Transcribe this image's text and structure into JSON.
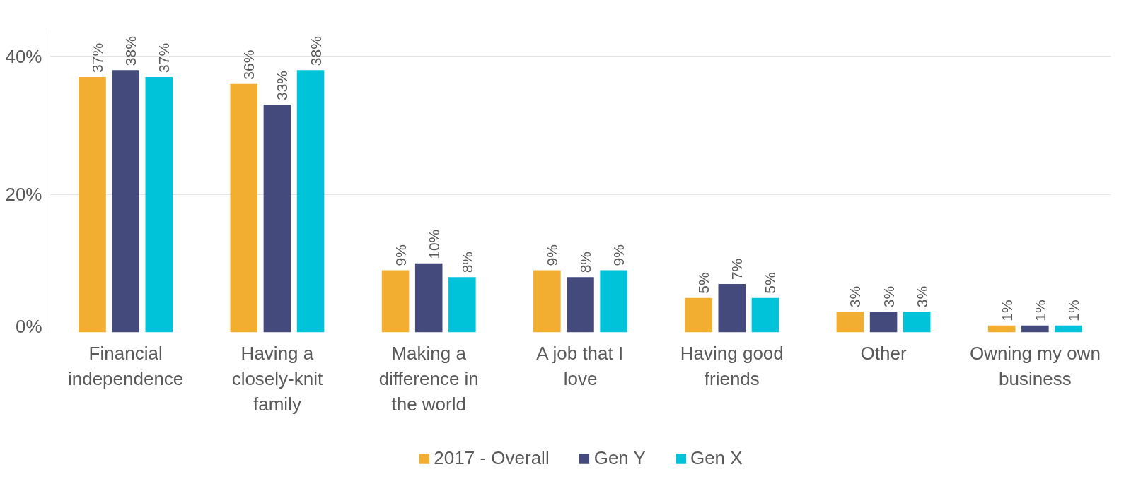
{
  "chart_data": {
    "type": "bar",
    "categories": [
      "Financial independence",
      "Having a closely-knit family",
      "Making a difference in the world",
      "A job that I love",
      "Having good friends",
      "Other",
      "Owning my own business"
    ],
    "series": [
      {
        "name": "2017 - Overall",
        "color": "#f2ae30",
        "values": [
          37,
          36,
          9,
          9,
          5,
          3,
          1
        ],
        "value_labels": [
          "37%",
          "36%",
          "9%",
          "9%",
          "5%",
          "3%",
          "1%"
        ]
      },
      {
        "name": "Gen Y",
        "color": "#444b7c",
        "values": [
          38,
          33,
          10,
          8,
          7,
          3,
          1
        ],
        "value_labels": [
          "38%",
          "33%",
          "10%",
          "8%",
          "7%",
          "3%",
          "1%"
        ]
      },
      {
        "name": "Gen X",
        "color": "#00c2d9",
        "values": [
          37,
          38,
          8,
          9,
          5,
          3,
          1
        ],
        "value_labels": [
          "37%",
          "38%",
          "8%",
          "9%",
          "5%",
          "3%",
          "1%"
        ]
      }
    ],
    "ylim": [
      0,
      44
    ],
    "yticks": [
      {
        "value": 0,
        "label": "0%"
      },
      {
        "value": 20,
        "label": "20%"
      },
      {
        "value": 40,
        "label": "40%"
      }
    ],
    "grid": "y",
    "legend": "bottom"
  }
}
